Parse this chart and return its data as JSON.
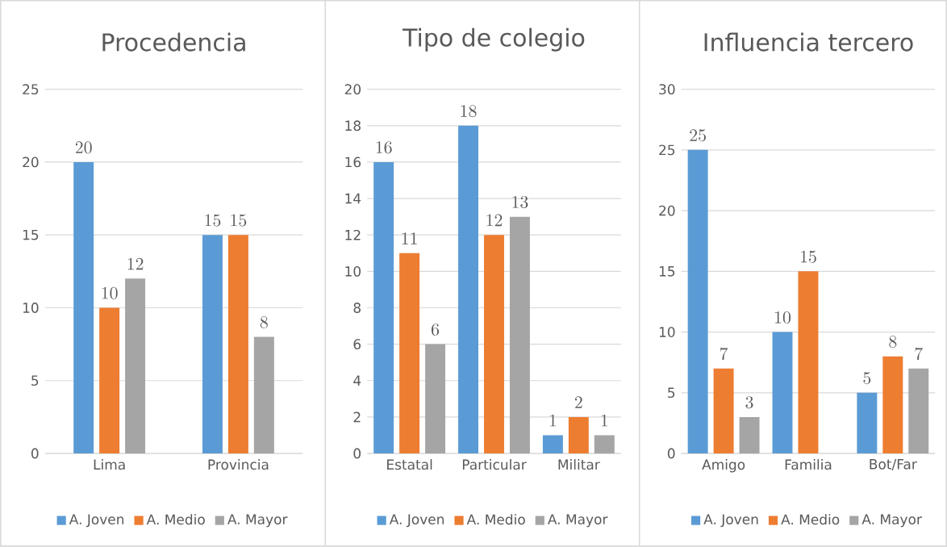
{
  "chart_data": [
    {
      "type": "bar",
      "title": "Procedencia",
      "categories": [
        "Lima",
        "Provincia"
      ],
      "series": [
        {
          "name": "A. Joven",
          "color": "#5b9bd5",
          "values": [
            20,
            15
          ]
        },
        {
          "name": "A. Medio",
          "color": "#ed7d31",
          "values": [
            10,
            15
          ]
        },
        {
          "name": "A. Mayor",
          "color": "#a5a5a5",
          "values": [
            12,
            8
          ]
        }
      ],
      "ylim": [
        0,
        25
      ],
      "yticks": [
        0,
        5,
        10,
        15,
        20,
        25
      ],
      "grid": "y",
      "legend": "bottom",
      "data_labels": true
    },
    {
      "type": "bar",
      "title": "Tipo de colegio",
      "categories": [
        "Estatal",
        "Particular",
        "Militar"
      ],
      "series": [
        {
          "name": "A. Joven",
          "color": "#5b9bd5",
          "values": [
            16,
            18,
            1
          ]
        },
        {
          "name": "A. Medio",
          "color": "#ed7d31",
          "values": [
            11,
            12,
            2
          ]
        },
        {
          "name": "A. Mayor",
          "color": "#a5a5a5",
          "values": [
            6,
            13,
            1
          ]
        }
      ],
      "ylim": [
        0,
        20
      ],
      "yticks": [
        0,
        2,
        4,
        6,
        8,
        10,
        12,
        14,
        16,
        18,
        20
      ],
      "grid": "y",
      "legend": "bottom",
      "data_labels": true
    },
    {
      "type": "bar",
      "title": "Influencia tercero",
      "categories": [
        "Amigo",
        "Familia",
        "Bot/Far"
      ],
      "series": [
        {
          "name": "A. Joven",
          "color": "#5b9bd5",
          "values": [
            25,
            10,
            5
          ]
        },
        {
          "name": "A. Medio",
          "color": "#ed7d31",
          "values": [
            7,
            15,
            8
          ]
        },
        {
          "name": "A. Mayor",
          "color": "#a5a5a5",
          "values": [
            3,
            null,
            7
          ]
        }
      ],
      "ylim": [
        0,
        30
      ],
      "yticks": [
        0,
        5,
        10,
        15,
        20,
        25,
        30
      ],
      "grid": "y",
      "legend": "bottom",
      "data_labels": true
    }
  ]
}
